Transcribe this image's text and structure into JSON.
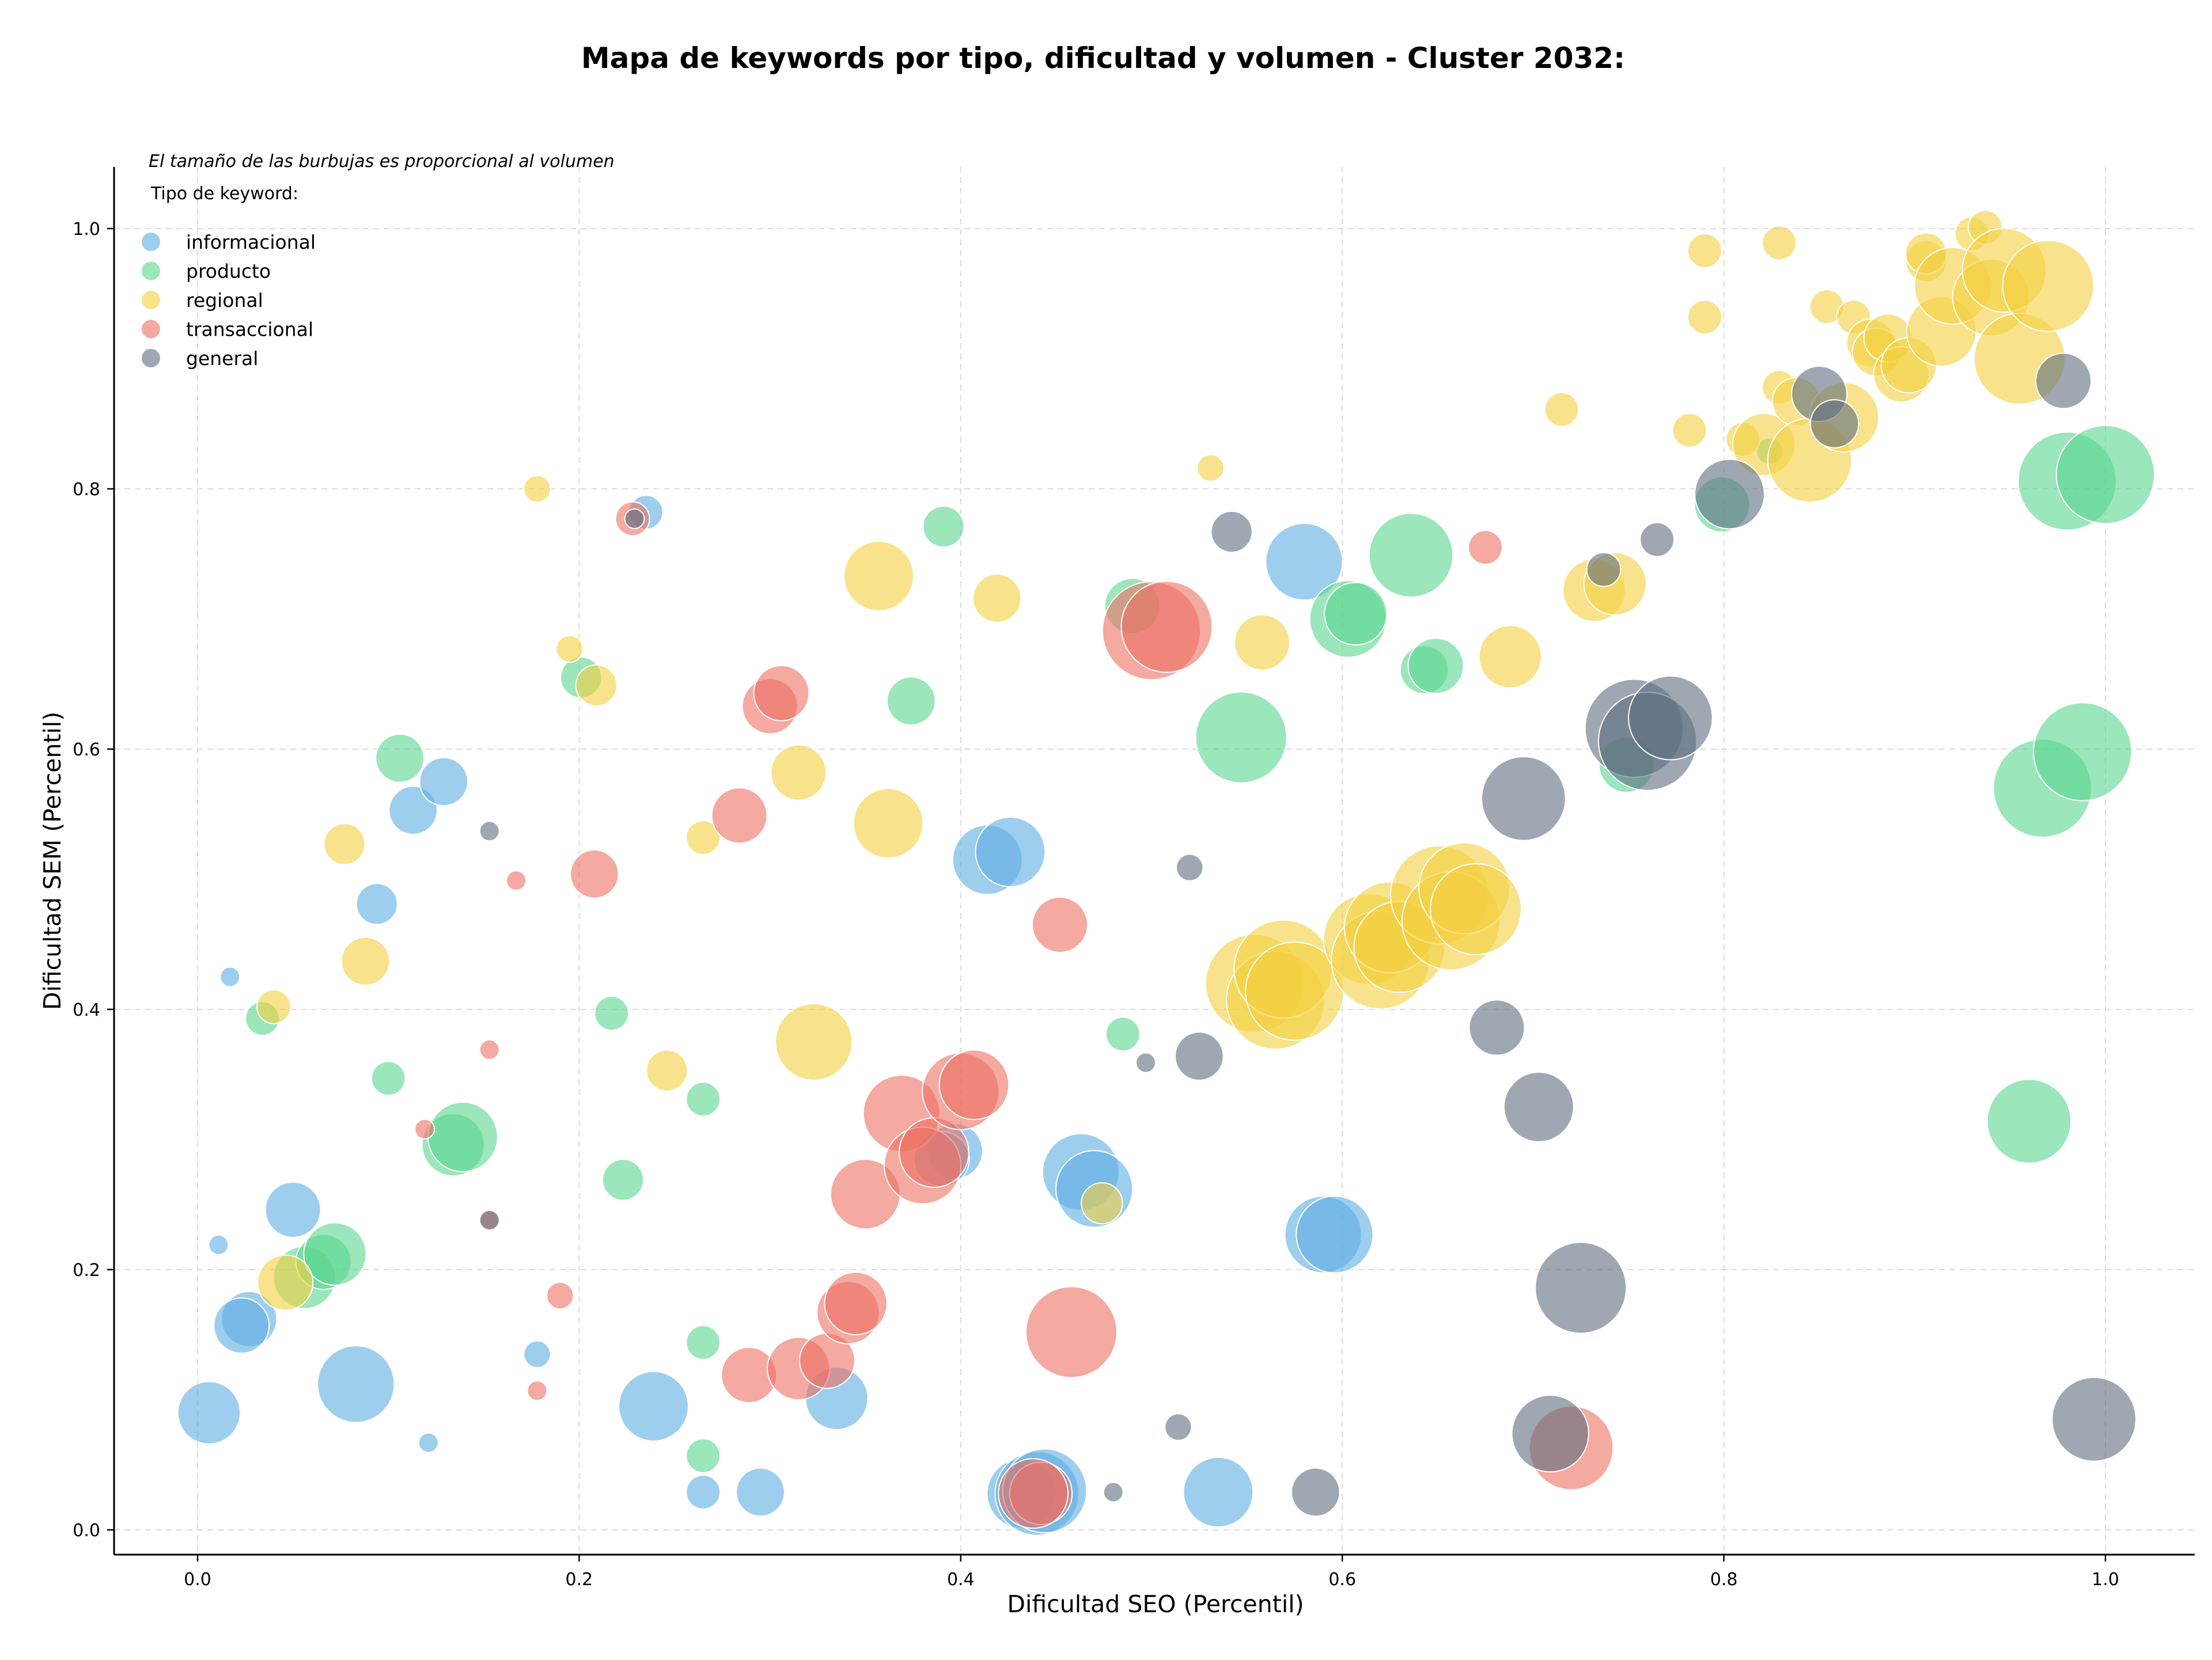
{
  "chart_data": {
    "type": "scatter",
    "title": "Mapa de keywords por tipo, dificultad y volumen - Cluster 2032:",
    "xlabel": "Dificultad SEO (Percentil)",
    "ylabel": "Dificultad SEM (Percentil)",
    "note": "El tamaño de las burbujas es proporcional al volumen",
    "legend_title": "Tipo de keyword:",
    "legend_position": "top-left",
    "grid": true,
    "xlim": [
      -0.045,
      1.05
    ],
    "ylim": [
      -0.02,
      1.05
    ],
    "x_ticks": [
      0.0,
      0.2,
      0.4,
      0.6,
      0.8,
      1.0
    ],
    "y_ticks": [
      0.0,
      0.2,
      0.4,
      0.6,
      0.8,
      1.0
    ],
    "x_tick_labels": [
      "0.0",
      "0.2",
      "0.4",
      "0.6",
      "0.8",
      "1.0"
    ],
    "y_tick_labels": [
      "0.0",
      "0.2",
      "0.4",
      "0.6",
      "0.8",
      "1.0"
    ],
    "series": [
      {
        "name": "informacional",
        "color": "#5DADE2",
        "points": [
          [
            0.017,
            0.425,
            1
          ],
          [
            0.011,
            0.219,
            1
          ],
          [
            0.121,
            0.067,
            1
          ],
          [
            0.178,
            0.135,
            2
          ],
          [
            0.235,
            0.782,
            3
          ],
          [
            0.094,
            0.481,
            4
          ],
          [
            0.113,
            0.553,
            5
          ],
          [
            0.129,
            0.575,
            5
          ],
          [
            0.05,
            0.246,
            6
          ],
          [
            0.027,
            0.162,
            6
          ],
          [
            0.023,
            0.157,
            6
          ],
          [
            0.006,
            0.09,
            7
          ],
          [
            0.083,
            0.112,
            9
          ],
          [
            0.239,
            0.095,
            8
          ],
          [
            0.265,
            0.029,
            3
          ],
          [
            0.295,
            0.029,
            5
          ],
          [
            0.335,
            0.101,
            7
          ],
          [
            0.397,
            0.291,
            6
          ],
          [
            0.39,
            0.285,
            6
          ],
          [
            0.414,
            0.515,
            8
          ],
          [
            0.426,
            0.521,
            8
          ],
          [
            0.432,
            0.028,
            8
          ],
          [
            0.44,
            0.028,
            10
          ],
          [
            0.444,
            0.03,
            10
          ],
          [
            0.463,
            0.275,
            9
          ],
          [
            0.47,
            0.262,
            9
          ],
          [
            0.58,
            0.744,
            9
          ],
          [
            0.59,
            0.227,
            9
          ],
          [
            0.596,
            0.227,
            9
          ],
          [
            0.535,
            0.029,
            8
          ]
        ]
      },
      {
        "name": "producto",
        "color": "#58D68D",
        "points": [
          [
            0.034,
            0.393,
            3
          ],
          [
            0.1,
            0.347,
            3
          ],
          [
            0.106,
            0.593,
            5
          ],
          [
            0.134,
            0.296,
            7
          ],
          [
            0.139,
            0.302,
            8
          ],
          [
            0.056,
            0.194,
            7
          ],
          [
            0.066,
            0.206,
            6
          ],
          [
            0.072,
            0.212,
            7
          ],
          [
            0.201,
            0.655,
            4
          ],
          [
            0.217,
            0.397,
            3
          ],
          [
            0.223,
            0.269,
            4
          ],
          [
            0.265,
            0.331,
            3
          ],
          [
            0.265,
            0.144,
            3
          ],
          [
            0.265,
            0.057,
            3
          ],
          [
            0.374,
            0.637,
            5
          ],
          [
            0.391,
            0.771,
            4
          ],
          [
            0.49,
            0.71,
            6
          ],
          [
            0.485,
            0.381,
            3
          ],
          [
            0.547,
            0.609,
            11
          ],
          [
            0.603,
            0.7,
            9
          ],
          [
            0.607,
            0.704,
            7
          ],
          [
            0.636,
            0.749,
            10
          ],
          [
            0.643,
            0.661,
            5
          ],
          [
            0.649,
            0.664,
            6
          ],
          [
            0.749,
            0.588,
            6
          ],
          [
            0.799,
            0.788,
            6
          ],
          [
            0.824,
            0.829,
            2
          ],
          [
            0.96,
            0.314,
            10
          ],
          [
            0.967,
            0.57,
            12
          ],
          [
            0.98,
            0.806,
            12
          ],
          [
            0.988,
            0.598,
            12
          ],
          [
            1.0,
            0.811,
            12
          ]
        ]
      },
      {
        "name": "regional",
        "color": "#F4D03F",
        "points": [
          [
            0.04,
            0.402,
            3
          ],
          [
            0.077,
            0.527,
            4
          ],
          [
            0.088,
            0.437,
            5
          ],
          [
            0.046,
            0.19,
            6
          ],
          [
            0.178,
            0.8,
            2
          ],
          [
            0.195,
            0.677,
            2
          ],
          [
            0.209,
            0.649,
            4
          ],
          [
            0.246,
            0.353,
            4
          ],
          [
            0.265,
            0.532,
            3
          ],
          [
            0.315,
            0.582,
            6
          ],
          [
            0.323,
            0.375,
            9
          ],
          [
            0.357,
            0.733,
            8
          ],
          [
            0.362,
            0.543,
            8
          ],
          [
            0.419,
            0.716,
            5
          ],
          [
            0.474,
            0.251,
            4
          ],
          [
            0.531,
            0.816,
            2
          ],
          [
            0.558,
            0.682,
            6
          ],
          [
            0.554,
            0.42,
            12
          ],
          [
            0.565,
            0.407,
            12
          ],
          [
            0.569,
            0.431,
            12
          ],
          [
            0.575,
            0.414,
            12
          ],
          [
            0.614,
            0.454,
            11
          ],
          [
            0.62,
            0.438,
            12
          ],
          [
            0.625,
            0.463,
            11
          ],
          [
            0.63,
            0.448,
            11
          ],
          [
            0.651,
            0.488,
            12
          ],
          [
            0.657,
            0.468,
            12
          ],
          [
            0.664,
            0.493,
            11
          ],
          [
            0.67,
            0.477,
            11
          ],
          [
            0.688,
            0.671,
            7
          ],
          [
            0.715,
            0.861,
            3
          ],
          [
            0.732,
            0.722,
            7
          ],
          [
            0.743,
            0.727,
            7
          ],
          [
            0.782,
            0.845,
            3
          ],
          [
            0.79,
            0.983,
            3
          ],
          [
            0.79,
            0.932,
            3
          ],
          [
            0.81,
            0.838,
            3
          ],
          [
            0.821,
            0.834,
            7
          ],
          [
            0.829,
            0.989,
            3
          ],
          [
            0.829,
            0.878,
            3
          ],
          [
            0.838,
            0.867,
            5
          ],
          [
            0.845,
            0.822,
            10
          ],
          [
            0.854,
            0.94,
            3
          ],
          [
            0.863,
            0.855,
            8
          ],
          [
            0.868,
            0.932,
            3
          ],
          [
            0.877,
            0.912,
            5
          ],
          [
            0.88,
            0.905,
            5
          ],
          [
            0.886,
            0.916,
            5
          ],
          [
            0.893,
            0.888,
            6
          ],
          [
            0.897,
            0.895,
            6
          ],
          [
            0.906,
            0.975,
            4
          ],
          [
            0.906,
            0.981,
            4
          ],
          [
            0.914,
            0.921,
            8
          ],
          [
            0.92,
            0.956,
            9
          ],
          [
            0.93,
            0.996,
            3
          ],
          [
            0.937,
            1.001,
            3
          ],
          [
            0.94,
            0.947,
            9
          ],
          [
            0.947,
            0.968,
            10
          ],
          [
            0.955,
            0.9,
            11
          ],
          [
            0.97,
            0.956,
            11
          ]
        ]
      },
      {
        "name": "transaccional",
        "color": "#EC7063",
        "points": [
          [
            0.119,
            0.308,
            1
          ],
          [
            0.153,
            0.369,
            1
          ],
          [
            0.167,
            0.499,
            1
          ],
          [
            0.178,
            0.107,
            1
          ],
          [
            0.153,
            0.238,
            1
          ],
          [
            0.19,
            0.18,
            2
          ],
          [
            0.208,
            0.504,
            5
          ],
          [
            0.228,
            0.777,
            3
          ],
          [
            0.284,
            0.549,
            6
          ],
          [
            0.289,
            0.119,
            6
          ],
          [
            0.3,
            0.633,
            6
          ],
          [
            0.306,
            0.643,
            6
          ],
          [
            0.315,
            0.124,
            7
          ],
          [
            0.33,
            0.13,
            6
          ],
          [
            0.341,
            0.167,
            7
          ],
          [
            0.345,
            0.174,
            7
          ],
          [
            0.35,
            0.258,
            8
          ],
          [
            0.369,
            0.32,
            9
          ],
          [
            0.38,
            0.28,
            9
          ],
          [
            0.386,
            0.29,
            8
          ],
          [
            0.4,
            0.337,
            9
          ],
          [
            0.407,
            0.342,
            8
          ],
          [
            0.442,
            0.028,
            7
          ],
          [
            0.438,
            0.028,
            8
          ],
          [
            0.452,
            0.465,
            6
          ],
          [
            0.458,
            0.152,
            11
          ],
          [
            0.5,
            0.691,
            12
          ],
          [
            0.508,
            0.694,
            11
          ],
          [
            0.675,
            0.755,
            3
          ],
          [
            0.72,
            0.063,
            10
          ]
        ]
      },
      {
        "name": "general",
        "color": "#5D6D7E",
        "points": [
          [
            0.153,
            0.238,
            1
          ],
          [
            0.153,
            0.537,
            1
          ],
          [
            0.229,
            0.777,
            1
          ],
          [
            0.48,
            0.029,
            1
          ],
          [
            0.497,
            0.359,
            1
          ],
          [
            0.514,
            0.079,
            2
          ],
          [
            0.52,
            0.509,
            2
          ],
          [
            0.525,
            0.364,
            5
          ],
          [
            0.542,
            0.767,
            4
          ],
          [
            0.586,
            0.029,
            5
          ],
          [
            0.681,
            0.386,
            6
          ],
          [
            0.695,
            0.562,
            10
          ],
          [
            0.703,
            0.325,
            8
          ],
          [
            0.709,
            0.074,
            9
          ],
          [
            0.725,
            0.186,
            11
          ],
          [
            0.737,
            0.738,
            3
          ],
          [
            0.753,
            0.616,
            12
          ],
          [
            0.76,
            0.606,
            12
          ],
          [
            0.765,
            0.761,
            3
          ],
          [
            0.772,
            0.624,
            10
          ],
          [
            0.803,
            0.796,
            8
          ],
          [
            0.85,
            0.873,
            6
          ],
          [
            0.858,
            0.85,
            5
          ],
          [
            0.978,
            0.883,
            6
          ],
          [
            0.994,
            0.085,
            10
          ]
        ]
      }
    ]
  }
}
